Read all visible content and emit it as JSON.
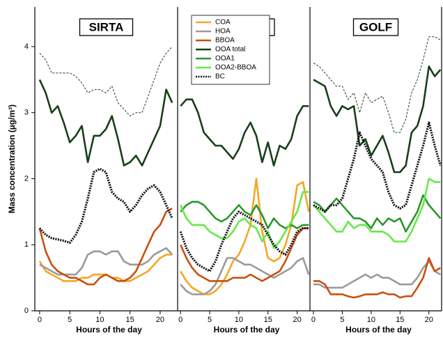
{
  "chart_data": [
    {
      "type": "line",
      "title": "SIRTA",
      "y_label": "Mass concentration (µg/m³)",
      "x_label": "Hours of the day",
      "x": [
        0,
        1,
        2,
        3,
        4,
        5,
        6,
        7,
        8,
        9,
        10,
        11,
        12,
        13,
        14,
        15,
        16,
        17,
        18,
        19,
        20,
        21,
        22
      ],
      "xlim": [
        -0.8,
        22.9
      ],
      "xticks": [
        0,
        5,
        10,
        15,
        20
      ],
      "ylim": [
        0,
        4.6
      ],
      "yticks": [
        0,
        1,
        2,
        3,
        4
      ],
      "series": [
        {
          "name": "COA",
          "color": "#f5a623",
          "dash": "solid",
          "values": [
            0.75,
            0.6,
            0.55,
            0.5,
            0.45,
            0.45,
            0.45,
            0.5,
            0.5,
            0.55,
            0.55,
            0.55,
            0.5,
            0.5,
            0.45,
            0.45,
            0.5,
            0.55,
            0.6,
            0.7,
            0.8,
            0.85,
            0.85
          ]
        },
        {
          "name": "HOA",
          "color": "#9a9a9a",
          "dash": "solid",
          "values": [
            0.7,
            0.65,
            0.6,
            0.55,
            0.55,
            0.55,
            0.55,
            0.65,
            0.85,
            0.9,
            0.9,
            0.85,
            0.9,
            0.9,
            0.75,
            0.7,
            0.7,
            0.7,
            0.75,
            0.85,
            0.9,
            0.95,
            0.85
          ]
        },
        {
          "name": "BBOA",
          "color": "#c8500f",
          "dash": "solid",
          "values": [
            1.25,
            0.9,
            0.7,
            0.6,
            0.55,
            0.5,
            0.5,
            0.45,
            0.4,
            0.4,
            0.5,
            0.55,
            0.5,
            0.45,
            0.45,
            0.5,
            0.6,
            0.8,
            1.0,
            1.2,
            1.3,
            1.5,
            1.55
          ]
        },
        {
          "name": "OOA total",
          "color": "#173f17",
          "dash": "solid",
          "values": [
            3.5,
            3.3,
            3.0,
            3.1,
            2.85,
            2.55,
            2.65,
            2.8,
            2.25,
            2.65,
            2.65,
            2.75,
            2.95,
            2.6,
            2.2,
            2.25,
            2.35,
            2.2,
            2.4,
            2.6,
            2.8,
            3.35,
            3.15
          ],
          "upper": [
            3.9,
            3.8,
            3.6,
            3.6,
            3.6,
            3.6,
            3.55,
            3.45,
            3.3,
            3.35,
            3.35,
            3.3,
            3.4,
            3.15,
            3.05,
            2.95,
            3.0,
            3.0,
            3.25,
            3.5,
            3.75,
            3.9,
            4.0
          ]
        },
        {
          "name": "BC",
          "color": "#111111",
          "dash": "dotted",
          "values": [
            1.25,
            1.15,
            1.1,
            1.08,
            1.06,
            1.03,
            1.15,
            1.35,
            1.7,
            2.1,
            2.15,
            2.1,
            1.8,
            1.7,
            1.65,
            1.5,
            1.6,
            1.75,
            1.85,
            1.9,
            1.8,
            1.6,
            1.4
          ]
        }
      ]
    },
    {
      "type": "line",
      "title": "LHVP",
      "x_label": "Hours of the day",
      "legend": "upper left",
      "x": [
        0,
        1,
        2,
        3,
        4,
        5,
        6,
        7,
        8,
        9,
        10,
        11,
        12,
        13,
        14,
        15,
        16,
        17,
        18,
        19,
        20,
        21,
        22
      ],
      "xlim": [
        -0.5,
        22.2
      ],
      "xticks": [
        0,
        5,
        10,
        15,
        20
      ],
      "ylim": [
        0,
        4.6
      ],
      "series": [
        {
          "name": "COA",
          "color": "#f5a623",
          "dash": "solid",
          "values": [
            0.6,
            0.45,
            0.35,
            0.3,
            0.25,
            0.25,
            0.3,
            0.4,
            0.55,
            0.75,
            0.85,
            1.05,
            1.3,
            2.0,
            1.2,
            0.8,
            0.75,
            0.8,
            1.0,
            1.3,
            1.9,
            1.95,
            1.5
          ]
        },
        {
          "name": "HOA",
          "color": "#9a9a9a",
          "dash": "solid",
          "values": [
            0.4,
            0.3,
            0.25,
            0.25,
            0.25,
            0.3,
            0.4,
            0.6,
            0.8,
            0.8,
            0.75,
            0.7,
            0.7,
            0.65,
            0.6,
            0.55,
            0.5,
            0.55,
            0.6,
            0.65,
            0.75,
            0.8,
            0.55
          ]
        },
        {
          "name": "BBOA",
          "color": "#c8500f",
          "dash": "solid",
          "values": [
            1.0,
            0.8,
            0.65,
            0.55,
            0.5,
            0.45,
            0.45,
            0.45,
            0.45,
            0.5,
            0.5,
            0.5,
            0.55,
            0.5,
            0.45,
            0.5,
            0.55,
            0.6,
            0.75,
            0.95,
            1.15,
            1.25,
            1.25
          ]
        },
        {
          "name": "OOA total",
          "color": "#173f17",
          "dash": "solid",
          "values": [
            3.1,
            3.2,
            3.2,
            3.0,
            2.7,
            2.6,
            2.5,
            2.5,
            2.4,
            2.3,
            2.45,
            2.7,
            2.85,
            2.65,
            2.25,
            2.55,
            2.2,
            2.5,
            2.45,
            2.6,
            2.95,
            3.1,
            3.1
          ]
        },
        {
          "name": "OOA1",
          "color": "#2a962a",
          "dash": "solid",
          "values": [
            1.5,
            1.6,
            1.65,
            1.65,
            1.6,
            1.5,
            1.4,
            1.35,
            1.4,
            1.5,
            1.6,
            1.5,
            1.45,
            1.6,
            1.45,
            1.25,
            1.4,
            1.3,
            1.25,
            1.3,
            1.25,
            1.3,
            1.3
          ]
        },
        {
          "name": "OOA2-BBOA",
          "color": "#66e84a",
          "dash": "solid",
          "values": [
            1.6,
            1.4,
            1.3,
            1.3,
            1.3,
            1.2,
            1.15,
            1.1,
            1.1,
            1.2,
            1.35,
            1.4,
            1.3,
            1.25,
            1.05,
            1.2,
            0.95,
            1.05,
            1.2,
            1.35,
            1.5,
            1.8,
            1.8
          ]
        },
        {
          "name": "BC",
          "color": "#111111",
          "dash": "dotted",
          "values": [
            1.2,
            0.95,
            0.8,
            0.7,
            0.65,
            0.6,
            0.75,
            1.0,
            1.2,
            1.4,
            1.5,
            1.45,
            1.4,
            1.35,
            1.3,
            1.15,
            1.0,
            0.9,
            0.85,
            1.0,
            1.2,
            1.25,
            1.25
          ]
        }
      ]
    },
    {
      "type": "line",
      "title": "GOLF",
      "x_label": "Hours of the day",
      "x": [
        0,
        1,
        2,
        3,
        4,
        5,
        6,
        7,
        8,
        9,
        10,
        11,
        12,
        13,
        14,
        15,
        16,
        17,
        18,
        19,
        20,
        21,
        22
      ],
      "xlim": [
        -0.6,
        22.2
      ],
      "xticks": [
        0,
        5,
        10,
        15,
        20
      ],
      "ylim": [
        0,
        4.6
      ],
      "series": [
        {
          "name": "HOA",
          "color": "#9a9a9a",
          "dash": "solid",
          "values": [
            0.4,
            0.4,
            0.35,
            0.35,
            0.35,
            0.35,
            0.4,
            0.45,
            0.5,
            0.55,
            0.5,
            0.55,
            0.5,
            0.5,
            0.45,
            0.4,
            0.4,
            0.4,
            0.5,
            0.65,
            0.75,
            0.6,
            0.55
          ]
        },
        {
          "name": "BBOA",
          "color": "#c8500f",
          "dash": "solid",
          "values": [
            0.45,
            0.45,
            0.4,
            0.25,
            0.25,
            0.25,
            0.22,
            0.2,
            0.22,
            0.25,
            0.25,
            0.25,
            0.28,
            0.25,
            0.25,
            0.2,
            0.22,
            0.22,
            0.35,
            0.5,
            0.8,
            0.6,
            0.65
          ]
        },
        {
          "name": "OOA total",
          "color": "#173f17",
          "dash": "solid",
          "values": [
            3.5,
            3.45,
            3.4,
            3.1,
            2.95,
            3.1,
            3.05,
            3.1,
            2.5,
            2.6,
            2.35,
            2.5,
            2.65,
            2.4,
            2.1,
            2.1,
            2.2,
            2.7,
            2.8,
            3.1,
            3.7,
            3.55,
            3.65
          ],
          "upper": [
            3.75,
            3.7,
            3.6,
            3.5,
            3.4,
            3.4,
            3.2,
            3.3,
            3.0,
            3.3,
            3.15,
            3.2,
            3.25,
            3.0,
            2.7,
            2.7,
            2.9,
            3.3,
            3.5,
            3.8,
            4.15,
            4.15,
            4.1
          ]
        },
        {
          "name": "OOA1",
          "color": "#2a962a",
          "dash": "solid",
          "values": [
            1.65,
            1.6,
            1.5,
            1.6,
            1.7,
            1.6,
            1.5,
            1.4,
            1.4,
            1.35,
            1.25,
            1.4,
            1.3,
            1.4,
            1.35,
            1.4,
            1.2,
            1.35,
            1.5,
            1.75,
            1.6,
            1.5,
            1.4
          ]
        },
        {
          "name": "OOA2-BBOA",
          "color": "#66e84a",
          "dash": "solid",
          "values": [
            1.6,
            1.5,
            1.4,
            1.3,
            1.2,
            1.2,
            1.35,
            1.25,
            1.3,
            1.3,
            1.2,
            1.2,
            1.2,
            1.15,
            1.05,
            1.05,
            1.05,
            1.2,
            1.4,
            1.6,
            2.0,
            1.95,
            1.95
          ]
        },
        {
          "name": "BC",
          "color": "#111111",
          "dash": "dotted",
          "values": [
            1.6,
            1.55,
            1.5,
            1.6,
            1.6,
            1.7,
            2.0,
            2.3,
            2.7,
            2.5,
            2.3,
            2.2,
            2.1,
            1.8,
            1.6,
            1.55,
            1.6,
            1.9,
            2.2,
            2.5,
            2.85,
            2.5,
            2.2
          ]
        }
      ]
    }
  ]
}
